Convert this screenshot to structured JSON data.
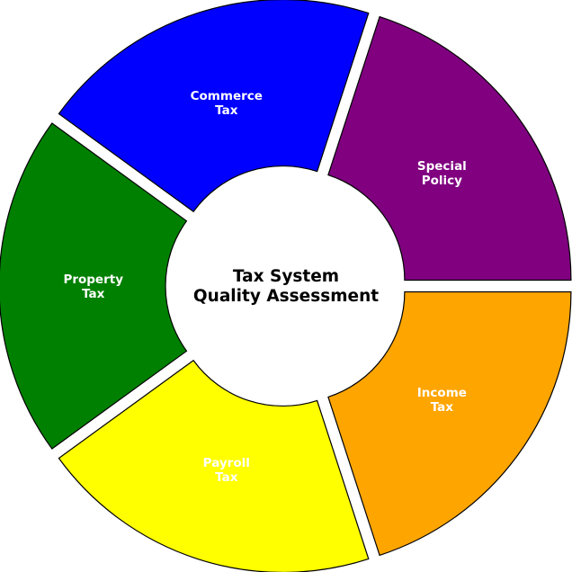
{
  "chart_data": {
    "type": "pie",
    "variant": "donut",
    "title": "Tax System\nQuality Assessment",
    "grid": false,
    "legend": "none",
    "slices": [
      {
        "label": "Special\nPolicy",
        "value": 1,
        "color": "#800080"
      },
      {
        "label": "Commerce\nTax",
        "value": 1,
        "color": "#0000ff"
      },
      {
        "label": "Property\nTax",
        "value": 1,
        "color": "#008000"
      },
      {
        "label": "Payroll\nTax",
        "value": 1,
        "color": "#ffff00"
      },
      {
        "label": "Income\nTax",
        "value": 1,
        "color": "#ffa500"
      }
    ]
  }
}
